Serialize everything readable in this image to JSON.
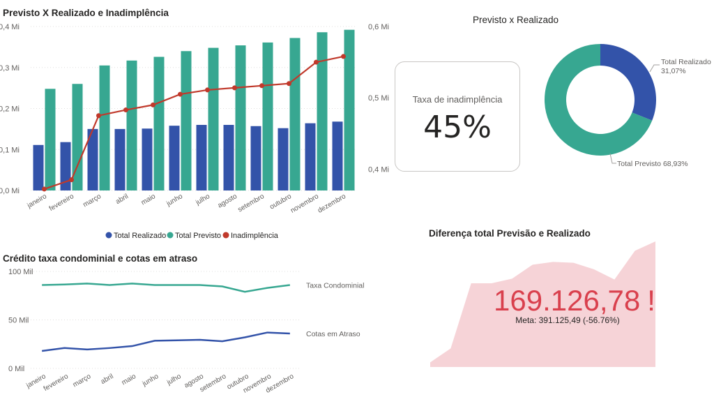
{
  "colors": {
    "realizado": "#3353a9",
    "previsto": "#37a791",
    "inadimplencia": "#c0392b",
    "taxa_condominial": "#37a791",
    "cotas_atraso": "#3353a9",
    "kpi": "#d9404d",
    "kpi_area": "#f6d3d7"
  },
  "chart_main": {
    "title": "Previsto X Realizado e Inadimplência",
    "y_left_ticks": [
      "0,0 Mi",
      "0,1 Mi",
      "0,2 Mi",
      "0,3 Mi",
      "0,4 Mi"
    ],
    "y_right_ticks": [
      "0,4 Mi",
      "0,5 Mi",
      "0,6 Mi"
    ],
    "legend": [
      "Total Realizado",
      "Total Previsto",
      "Inadimplência"
    ]
  },
  "kpi_card": {
    "label": "Taxa de inadimplência",
    "value": "45%"
  },
  "chart_donut": {
    "title": "Previsto x Realizado",
    "label_realizado_name": "Total Realizado",
    "label_realizado_pct": "31,07%",
    "label_previsto": "Total Previsto 68,93%"
  },
  "chart_credit": {
    "title": "Crédito taxa condominial e cotas em atraso",
    "y_ticks": [
      "0 Mil",
      "50 Mil",
      "100 Mil"
    ],
    "label_taxa": "Taxa Condominial",
    "label_cotas": "Cotas em Atraso"
  },
  "chart_diff": {
    "title": "Diferença total Previsão e Realizado",
    "value": "169.126,78",
    "alert": "!",
    "meta": "Meta: 391.125,49 (-56.76%)"
  },
  "chart_data": [
    {
      "type": "bar",
      "title": "Previsto X Realizado e Inadimplência",
      "categories": [
        "janeiro",
        "fevereiro",
        "março",
        "abril",
        "maio",
        "junho",
        "julho",
        "agosto",
        "setembro",
        "outubro",
        "novembro",
        "dezembro"
      ],
      "ylim": [
        0,
        0.4
      ],
      "y2lim": [
        0.37,
        0.6
      ],
      "series": [
        {
          "name": "Total Realizado",
          "axis": "left",
          "values": [
            0.111,
            0.118,
            0.15,
            0.15,
            0.151,
            0.158,
            0.16,
            0.16,
            0.157,
            0.152,
            0.164,
            0.168
          ]
        },
        {
          "name": "Total Previsto",
          "axis": "left",
          "values": [
            0.248,
            0.26,
            0.305,
            0.317,
            0.326,
            0.34,
            0.348,
            0.354,
            0.361,
            0.372,
            0.386,
            0.392
          ]
        },
        {
          "name": "Inadimplência",
          "axis": "right",
          "type": "line",
          "values": [
            0.372,
            0.385,
            0.475,
            0.483,
            0.49,
            0.505,
            0.511,
            0.514,
            0.517,
            0.52,
            0.55,
            0.558
          ]
        }
      ],
      "legend": "bottom"
    },
    {
      "type": "pie",
      "title": "Previsto x Realizado",
      "donut": true,
      "slices": [
        {
          "name": "Total Realizado",
          "value": 31.07
        },
        {
          "name": "Total Previsto",
          "value": 68.93
        }
      ]
    },
    {
      "type": "line",
      "title": "Crédito taxa condominial e cotas em atraso",
      "categories": [
        "janeiro",
        "fevereiro",
        "março",
        "abril",
        "maio",
        "junho",
        "julho",
        "agosto",
        "setembro",
        "outubro",
        "novembro",
        "dezembro"
      ],
      "ylim": [
        0,
        100
      ],
      "series": [
        {
          "name": "Taxa Condominial",
          "values": [
            86,
            86.5,
            87.5,
            86,
            87.5,
            86,
            86,
            86,
            84.5,
            79,
            83,
            86
          ]
        },
        {
          "name": "Cotas em Atraso",
          "values": [
            18,
            21,
            19.5,
            21,
            23,
            28.5,
            29,
            29.5,
            28,
            32,
            37,
            36
          ]
        }
      ]
    },
    {
      "type": "area",
      "title": "Diferença total Previsão e Realizado",
      "values": [
        0.5,
        2,
        9,
        9,
        9.5,
        11,
        11.3,
        11.2,
        10.5,
        9.4,
        12.5,
        13.5
      ]
    }
  ]
}
